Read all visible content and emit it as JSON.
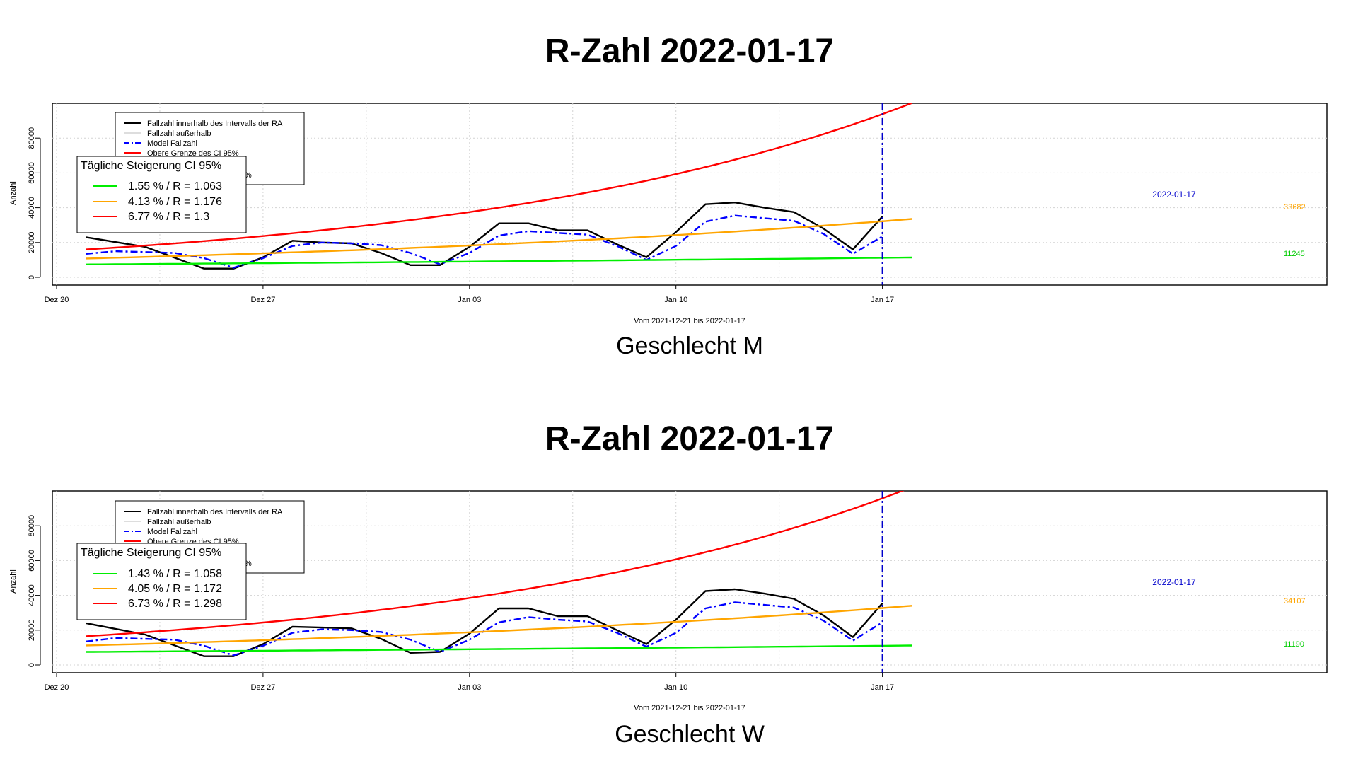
{
  "colors": {
    "observed": "#000000",
    "outside": "#bbbbbb",
    "model": "#0000ff",
    "upper": "#ff0000",
    "mid": "#ffa500",
    "lower": "#00ee00",
    "grid": "#d3d3d3",
    "marker": "#0000cc"
  },
  "chart_data": [
    {
      "type": "line",
      "title": "R-Zahl 2022-01-17",
      "subtitle": "Geschlecht M",
      "xlabel": "Vom 2021-12-21 bis 2022-01-17",
      "ylabel": "Anzahl",
      "ylim": [
        0,
        85000
      ],
      "yticks": [
        0,
        20000,
        40000,
        60000,
        80000
      ],
      "xticks": [
        {
          "day": 0,
          "label": "Dez 20"
        },
        {
          "day": 7,
          "label": "Dez 27"
        },
        {
          "day": 14,
          "label": "Jan 03"
        },
        {
          "day": 21,
          "label": "Jan 10"
        },
        {
          "day": 28,
          "label": "Jan 17"
        }
      ],
      "grid": true,
      "marker": {
        "day": 28,
        "label": "2022-01-17"
      },
      "legend": {
        "entries": [
          "Fallzahl innerhalb des Intervalls der RA",
          "Fallzahl außerhalb",
          "Model Fallzahl",
          "Obere Grenze des CI 95%"
        ],
        "ci_title": "Tägliche Steigerung CI  95%",
        "ci_rows": [
          "1.55 % / R = 1.063",
          "4.13 % / R = 1.176",
          "6.77 % / R = 1.3"
        ],
        "hidden_fragment": "%"
      },
      "end_labels": {
        "mid": "33682",
        "lower": "11245"
      },
      "series": [
        {
          "key": "observed",
          "days": [
            1,
            3,
            5,
            6,
            7,
            8,
            9,
            10,
            11,
            12,
            13,
            14,
            15,
            16,
            17,
            18,
            19,
            20,
            21,
            22,
            23,
            24,
            25,
            26,
            27,
            28
          ],
          "values": [
            23000,
            17500,
            5000,
            5000,
            11500,
            21000,
            20000,
            19500,
            14000,
            7000,
            7000,
            17500,
            31000,
            31000,
            27000,
            27000,
            19000,
            11500,
            26000,
            42000,
            43000,
            40000,
            37500,
            28000,
            16000,
            35000
          ]
        },
        {
          "key": "model",
          "days": [
            1,
            2,
            3,
            4,
            5,
            6,
            7,
            8,
            9,
            10,
            11,
            12,
            13,
            14,
            15,
            16,
            17,
            18,
            19,
            20,
            21,
            22,
            23,
            24,
            25,
            26,
            27,
            28
          ],
          "values": [
            13500,
            15000,
            14500,
            14000,
            11000,
            5500,
            11000,
            18000,
            20000,
            19500,
            18500,
            14000,
            7500,
            14000,
            24000,
            26500,
            25500,
            24500,
            18000,
            10000,
            18000,
            32000,
            35500,
            34000,
            32500,
            25000,
            13500,
            23500
          ]
        },
        {
          "key": "upper",
          "days_from": 1,
          "days_to": 29,
          "start": 16000,
          "rate": 0.0677
        },
        {
          "key": "mid",
          "days_from": 1,
          "days_to": 29,
          "start": 10800,
          "rate": 0.0413
        },
        {
          "key": "lower",
          "days_from": 1,
          "days_to": 29,
          "start": 7400,
          "rate": 0.0155
        }
      ]
    },
    {
      "type": "line",
      "title": "R-Zahl 2022-01-17",
      "subtitle": "Geschlecht W",
      "xlabel": "Vom 2021-12-21 bis 2022-01-17",
      "ylabel": "Anzahl",
      "ylim": [
        0,
        85000
      ],
      "yticks": [
        0,
        20000,
        40000,
        60000,
        80000
      ],
      "xticks": [
        {
          "day": 0,
          "label": "Dez 20"
        },
        {
          "day": 7,
          "label": "Dez 27"
        },
        {
          "day": 14,
          "label": "Jan 03"
        },
        {
          "day": 21,
          "label": "Jan 10"
        },
        {
          "day": 28,
          "label": "Jan 17"
        }
      ],
      "grid": true,
      "marker": {
        "day": 28,
        "label": "2022-01-17"
      },
      "legend": {
        "entries": [
          "Fallzahl innerhalb des Intervalls der RA",
          "Fallzahl außerhalb",
          "Model Fallzahl",
          "Obere Grenze des CI 95%"
        ],
        "ci_title": "Tägliche Steigerung CI  95%",
        "ci_rows": [
          "1.43 % / R = 1.058",
          "4.05 % / R = 1.172",
          "6.73 % / R = 1.298"
        ],
        "hidden_fragment": "%"
      },
      "end_labels": {
        "mid": "34107",
        "lower": "11190"
      },
      "series": [
        {
          "key": "observed",
          "days": [
            1,
            3,
            5,
            6,
            7,
            8,
            9,
            10,
            11,
            12,
            13,
            14,
            15,
            16,
            17,
            18,
            19,
            20,
            21,
            22,
            23,
            24,
            25,
            26,
            27,
            28
          ],
          "values": [
            24000,
            17500,
            5000,
            5000,
            12000,
            22000,
            21500,
            21000,
            15000,
            7000,
            7500,
            18000,
            32500,
            32500,
            28000,
            28000,
            20000,
            12000,
            26000,
            42500,
            43500,
            41000,
            38000,
            28500,
            16000,
            35500
          ]
        },
        {
          "key": "model",
          "days": [
            1,
            2,
            3,
            4,
            5,
            6,
            7,
            8,
            9,
            10,
            11,
            12,
            13,
            14,
            15,
            16,
            17,
            18,
            19,
            20,
            21,
            22,
            23,
            24,
            25,
            26,
            27,
            28
          ],
          "values": [
            13500,
            15500,
            15000,
            14500,
            11000,
            5500,
            11000,
            18500,
            20500,
            20000,
            19000,
            14500,
            7500,
            14500,
            24500,
            27500,
            26000,
            25000,
            18500,
            10500,
            18500,
            32500,
            36000,
            34500,
            33000,
            25500,
            14000,
            24500
          ]
        },
        {
          "key": "upper",
          "days_from": 1,
          "days_to": 29,
          "start": 16500,
          "rate": 0.0673
        },
        {
          "key": "mid",
          "days_from": 1,
          "days_to": 29,
          "start": 11200,
          "rate": 0.0405
        },
        {
          "key": "lower",
          "days_from": 1,
          "days_to": 29,
          "start": 7500,
          "rate": 0.0143
        }
      ]
    }
  ]
}
